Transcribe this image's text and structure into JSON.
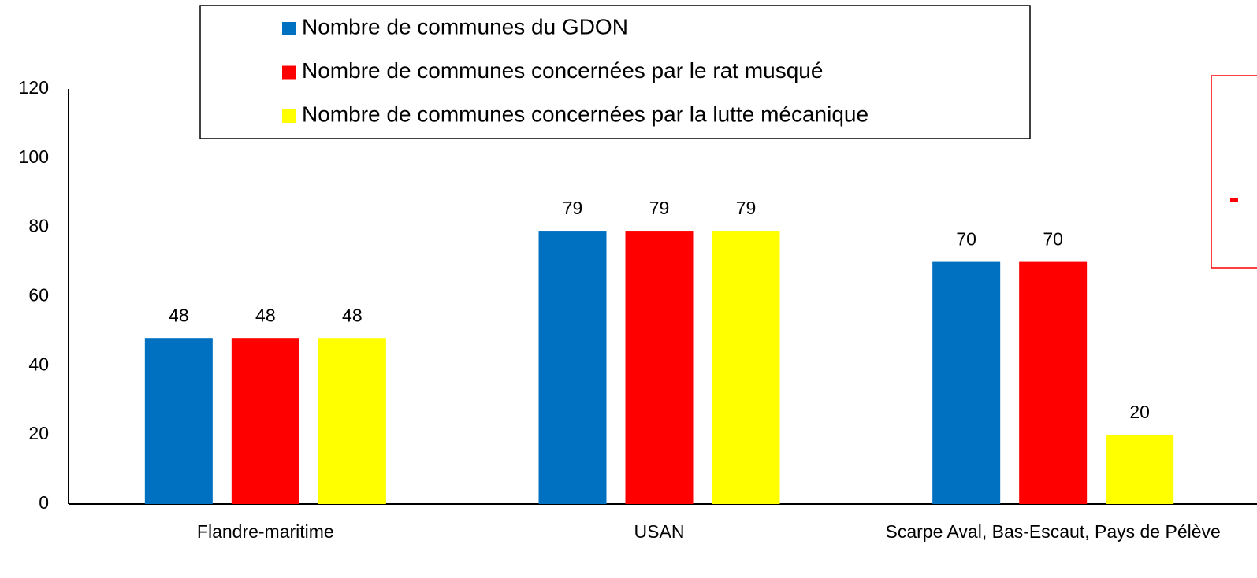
{
  "chart_data": {
    "type": "bar",
    "categories": [
      "Flandre-maritime",
      "USAN",
      "Scarpe Aval, Bas-Escaut, Pays de Pélève"
    ],
    "series": [
      {
        "name": "Nombre de communes du GDON",
        "color": "#0070c0",
        "values": [
          48,
          79,
          70
        ]
      },
      {
        "name": "Nombre de communes concernées par le rat musqué",
        "color": "#ff0000",
        "values": [
          48,
          79,
          70
        ]
      },
      {
        "name": "Nombre de communes concernées par la lutte mécanique",
        "color": "#ffff00",
        "values": [
          48,
          79,
          20
        ]
      }
    ],
    "ylim": [
      0,
      120
    ],
    "yticks": [
      0,
      20,
      40,
      60,
      80,
      100,
      120
    ],
    "grid": false,
    "legend": "top"
  }
}
